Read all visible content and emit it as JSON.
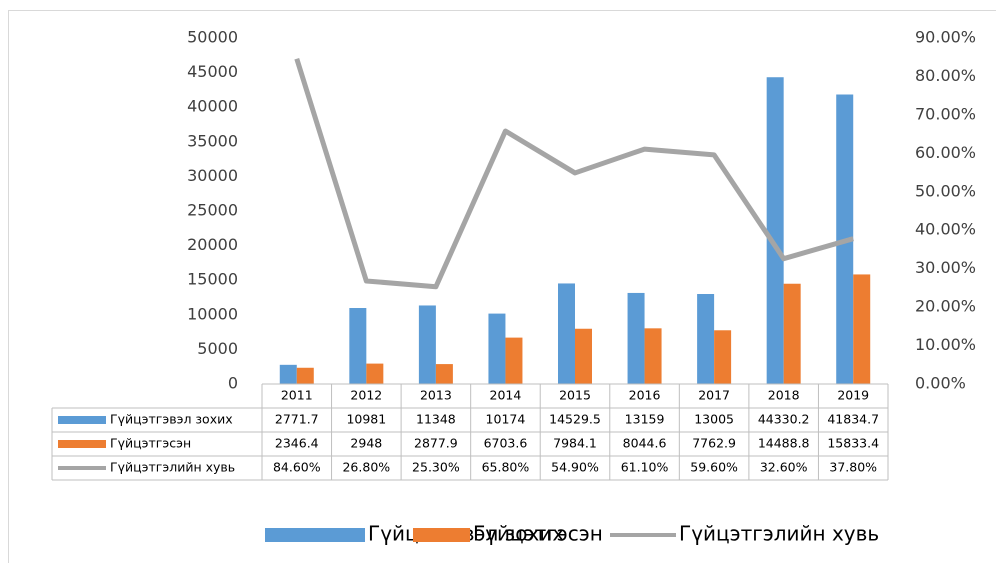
{
  "chart_data": {
    "type": "bar",
    "categories": [
      "2011",
      "2012",
      "2013",
      "2014",
      "2015",
      "2016",
      "2017",
      "2018",
      "2019"
    ],
    "series": [
      {
        "name": "Гүйцэтгэвэл зохих",
        "color": "#5b9bd5",
        "values": [
          2771.7,
          10981,
          11348,
          10174,
          14529.5,
          13159,
          13005,
          44330.2,
          41834.7
        ]
      },
      {
        "name": "Гүйцэтгэсэн",
        "color": "#ed7d31",
        "values": [
          2346.4,
          2948,
          2877.9,
          6703.6,
          7984.1,
          8044.6,
          7762.9,
          14488.8,
          15833.4
        ]
      },
      {
        "name": "Гүйцэтгэлийн хувь",
        "type": "line",
        "axis": "y2",
        "color": "#a5a5a5",
        "values": [
          84.6,
          26.8,
          25.3,
          65.8,
          54.9,
          61.1,
          59.6,
          32.6,
          37.8
        ],
        "value_labels": [
          "84.60%",
          "26.80%",
          "25.30%",
          "65.80%",
          "54.90%",
          "61.10%",
          "59.60%",
          "32.60%",
          "37.80%"
        ]
      }
    ],
    "ylim": [
      0,
      50000
    ],
    "yticks": [
      0,
      5000,
      10000,
      15000,
      20000,
      25000,
      30000,
      35000,
      40000,
      45000,
      50000
    ],
    "y2lim": [
      0,
      90
    ],
    "y2ticks": [
      {
        "value": 0,
        "label": "0.00%"
      },
      {
        "value": 10,
        "label": "10.00%"
      },
      {
        "value": 20,
        "label": "20.00%"
      },
      {
        "value": 30,
        "label": "30.00%"
      },
      {
        "value": 40,
        "label": "40.00%"
      },
      {
        "value": 50,
        "label": "50.00%"
      },
      {
        "value": 60,
        "label": "60.00%"
      },
      {
        "value": 70,
        "label": "70.00%"
      },
      {
        "value": 80,
        "label": "80.00%"
      },
      {
        "value": 90,
        "label": "90.00%"
      }
    ],
    "legend": "bottom",
    "data_table": true
  }
}
